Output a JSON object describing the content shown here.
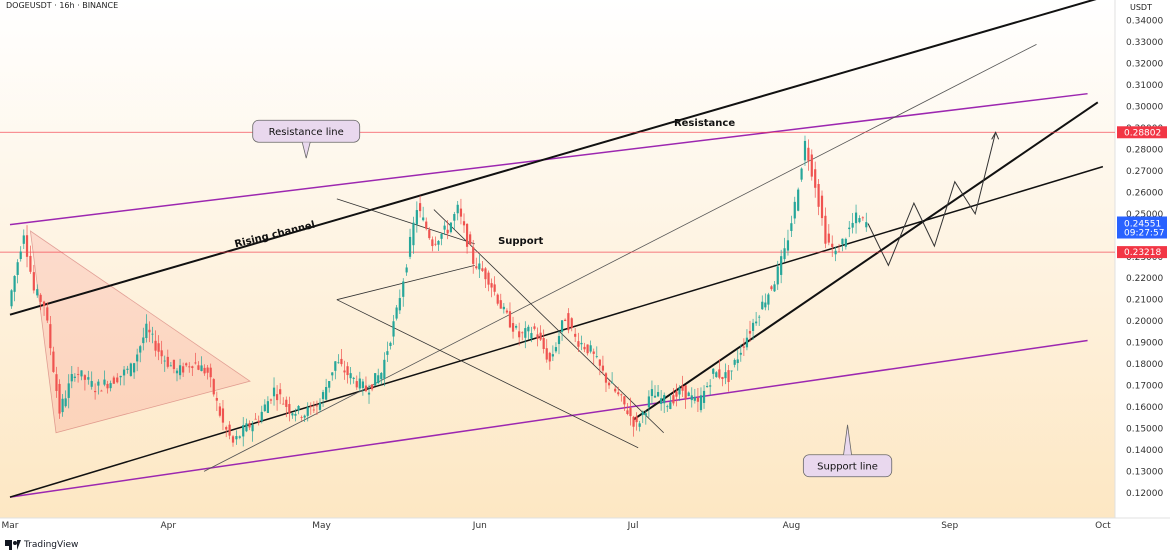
{
  "header": {
    "symbol_title": "DOGEUSDT · 16h · BINANCE",
    "currency_label": "USDT"
  },
  "footer": {
    "brand_label": "TradingView",
    "brand_icon": "tradingview-logo-icon"
  },
  "colors": {
    "up": "#26a69a",
    "down": "#ef5350",
    "resistance_band": "#9c27b0",
    "price_badge": "#2962ff",
    "level_badge": "#f23645",
    "background_top": "#ffffff",
    "background_bottom": "#fde7c3"
  },
  "chart_data": {
    "type": "candlestick",
    "title": "DOGEUSDT · 16h · BINANCE",
    "y_unit": "USDT",
    "ylim": [
      0.112,
      0.345
    ],
    "xlim": [
      "2024-03-01",
      "2024-10-02"
    ],
    "y_ticks": [
      "0.12000",
      "0.13000",
      "0.14000",
      "0.15000",
      "0.16000",
      "0.17000",
      "0.18000",
      "0.19000",
      "0.20000",
      "0.21000",
      "0.22000",
      "0.23000",
      "0.24000",
      "0.25000",
      "0.26000",
      "0.27000",
      "0.28000",
      "0.29000",
      "0.30000",
      "0.31000",
      "0.32000",
      "0.33000",
      "0.34000"
    ],
    "x_ticks": [
      {
        "label": "Mar",
        "date": "2024-03-01"
      },
      {
        "label": "Apr",
        "date": "2024-04-01"
      },
      {
        "label": "May",
        "date": "2024-05-01"
      },
      {
        "label": "Jun",
        "date": "2024-06-01"
      },
      {
        "label": "Jul",
        "date": "2024-07-01"
      },
      {
        "label": "Aug",
        "date": "2024-08-01"
      },
      {
        "label": "Sep",
        "date": "2024-09-01"
      },
      {
        "label": "Oct",
        "date": "2024-10-01"
      }
    ],
    "price_path": [
      [
        "2024-03-01",
        0.207
      ],
      [
        "2024-03-04",
        0.242
      ],
      [
        "2024-03-06",
        0.214
      ],
      [
        "2024-03-08",
        0.208
      ],
      [
        "2024-03-11",
        0.158
      ],
      [
        "2024-03-14",
        0.177
      ],
      [
        "2024-03-18",
        0.169
      ],
      [
        "2024-03-21",
        0.172
      ],
      [
        "2024-03-25",
        0.178
      ],
      [
        "2024-03-28",
        0.196
      ],
      [
        "2024-03-31",
        0.184
      ],
      [
        "2024-04-03",
        0.176
      ],
      [
        "2024-04-06",
        0.181
      ],
      [
        "2024-04-09",
        0.176
      ],
      [
        "2024-04-12",
        0.152
      ],
      [
        "2024-04-14",
        0.143
      ],
      [
        "2024-04-16",
        0.149
      ],
      [
        "2024-04-19",
        0.155
      ],
      [
        "2024-04-22",
        0.168
      ],
      [
        "2024-04-25",
        0.159
      ],
      [
        "2024-04-28",
        0.157
      ],
      [
        "2024-05-01",
        0.162
      ],
      [
        "2024-05-04",
        0.181
      ],
      [
        "2024-05-07",
        0.174
      ],
      [
        "2024-05-10",
        0.168
      ],
      [
        "2024-05-13",
        0.176
      ],
      [
        "2024-05-16",
        0.204
      ],
      [
        "2024-05-18",
        0.228
      ],
      [
        "2024-05-20",
        0.253
      ],
      [
        "2024-05-23",
        0.237
      ],
      [
        "2024-05-26",
        0.243
      ],
      [
        "2024-05-28",
        0.252
      ],
      [
        "2024-05-31",
        0.228
      ],
      [
        "2024-06-03",
        0.22
      ],
      [
        "2024-06-06",
        0.204
      ],
      [
        "2024-06-09",
        0.193
      ],
      [
        "2024-06-12",
        0.196
      ],
      [
        "2024-06-15",
        0.181
      ],
      [
        "2024-06-18",
        0.202
      ],
      [
        "2024-06-20",
        0.192
      ],
      [
        "2024-06-23",
        0.186
      ],
      [
        "2024-06-26",
        0.173
      ],
      [
        "2024-06-29",
        0.163
      ],
      [
        "2024-07-02",
        0.151
      ],
      [
        "2024-07-05",
        0.166
      ],
      [
        "2024-07-08",
        0.162
      ],
      [
        "2024-07-11",
        0.168
      ],
      [
        "2024-07-14",
        0.161
      ],
      [
        "2024-07-17",
        0.176
      ],
      [
        "2024-07-20",
        0.174
      ],
      [
        "2024-07-23",
        0.19
      ],
      [
        "2024-07-26",
        0.205
      ],
      [
        "2024-07-29",
        0.219
      ],
      [
        "2024-07-31",
        0.232
      ],
      [
        "2024-08-02",
        0.254
      ],
      [
        "2024-08-04",
        0.283
      ],
      [
        "2024-08-06",
        0.264
      ],
      [
        "2024-08-08",
        0.239
      ],
      [
        "2024-08-10",
        0.231
      ],
      [
        "2024-08-12",
        0.24
      ],
      [
        "2024-08-14",
        0.248
      ],
      [
        "2024-08-16",
        0.2455
      ]
    ],
    "projection_path": [
      [
        "2024-08-16",
        0.2455
      ],
      [
        "2024-08-20",
        0.226
      ],
      [
        "2024-08-25",
        0.255
      ],
      [
        "2024-08-29",
        0.235
      ],
      [
        "2024-09-02",
        0.265
      ],
      [
        "2024-09-06",
        0.25
      ],
      [
        "2024-09-10",
        0.288
      ]
    ],
    "horizontal_levels": [
      {
        "name": "Resistance",
        "value": 0.28802,
        "label": "0.28802"
      },
      {
        "name": "Support",
        "value": 0.23218,
        "label": "0.23218"
      }
    ],
    "current_price": {
      "value": 0.24551,
      "label": "0.24551",
      "countdown": "09:27:57"
    },
    "trendlines": [
      {
        "name": "Resistance line",
        "from": [
          "2024-03-01",
          0.245
        ],
        "to": [
          "2024-09-28",
          0.306
        ],
        "color": "#9c27b0",
        "width": 1.5
      },
      {
        "name": "Support line",
        "from": [
          "2024-03-01",
          0.118
        ],
        "to": [
          "2024-09-28",
          0.191
        ],
        "color": "#9c27b0",
        "width": 1.5
      },
      {
        "name": "Rising channel top",
        "from": [
          "2024-03-01",
          0.203
        ],
        "to": [
          "2024-10-01",
          0.351
        ],
        "color": "#111111",
        "width": 2
      },
      {
        "name": "Rising channel bottom",
        "from": [
          "2024-03-01",
          0.118
        ],
        "to": [
          "2024-10-01",
          0.272
        ],
        "color": "#111111",
        "width": 1.5
      },
      {
        "name": "Steep support",
        "from": [
          "2024-07-01",
          0.154
        ],
        "to": [
          "2024-09-30",
          0.302
        ],
        "color": "#111111",
        "width": 2
      },
      {
        "name": "Thin diagonal",
        "from": [
          "2024-04-08",
          0.13
        ],
        "to": [
          "2024-09-18",
          0.329
        ],
        "color": "#555555",
        "width": 0.8
      },
      {
        "name": "Wedge upper",
        "from": [
          "2024-05-04",
          0.257
        ],
        "to": [
          "2024-05-31",
          0.236
        ],
        "color": "#333333",
        "width": 0.8
      },
      {
        "name": "Wedge lower",
        "from": [
          "2024-05-04",
          0.21
        ],
        "to": [
          "2024-05-31",
          0.226
        ],
        "color": "#333333",
        "width": 0.8
      },
      {
        "name": "Channel upper",
        "from": [
          "2024-05-23",
          0.252
        ],
        "to": [
          "2024-07-07",
          0.148
        ],
        "color": "#333333",
        "width": 0.8
      },
      {
        "name": "Channel lower",
        "from": [
          "2024-05-04",
          0.21
        ],
        "to": [
          "2024-07-02",
          0.141
        ],
        "color": "#333333",
        "width": 0.8
      }
    ],
    "triangle": [
      [
        "2024-03-05",
        0.242
      ],
      [
        "2024-04-17",
        0.172
      ],
      [
        "2024-03-10",
        0.148
      ]
    ],
    "annotations": [
      {
        "text": "Resistance",
        "anchor": [
          "2024-07-15",
          0.291
        ],
        "type": "label"
      },
      {
        "text": "Support",
        "anchor": [
          "2024-06-09",
          0.236
        ],
        "type": "label"
      },
      {
        "text": "Rising channel",
        "anchor": [
          "2024-04-22",
          0.239
        ],
        "type": "rotated"
      },
      {
        "text": "Resistance line",
        "anchor": [
          "2024-04-28",
          0.275
        ],
        "type": "callout-down"
      },
      {
        "text": "Support line",
        "anchor": [
          "2024-08-12",
          0.148
        ],
        "type": "callout-up"
      }
    ],
    "grid": false,
    "legend": "none"
  }
}
